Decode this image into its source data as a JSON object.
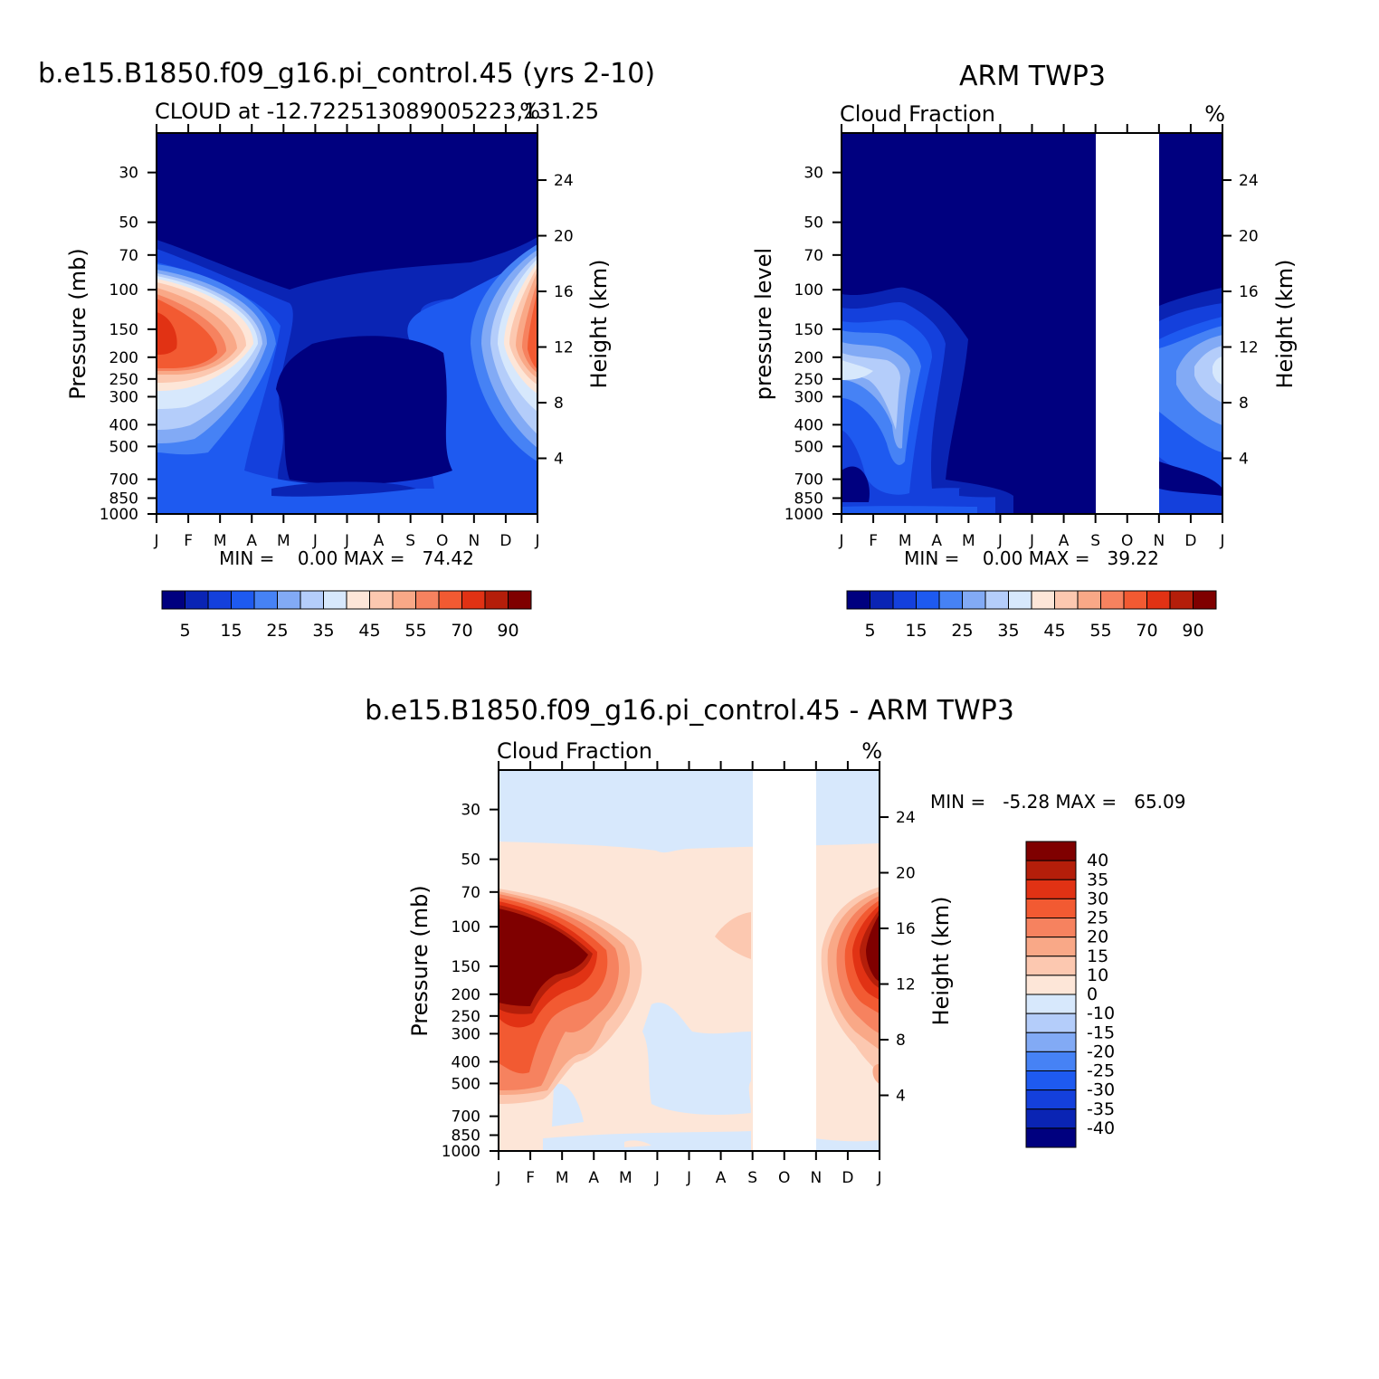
{
  "chart_data": [
    {
      "type": "heatmap",
      "title": "b.e15.B1850.f09_g16.pi_control.45 (yrs 2-10)",
      "subtitle_left": "CLOUD at -12.722513089005223,131.25",
      "subtitle_right": "%",
      "ylabel": "Pressure (mb)",
      "ylabel_right": "Height (km)",
      "x": [
        "J",
        "F",
        "M",
        "A",
        "M",
        "J",
        "J",
        "A",
        "S",
        "O",
        "N",
        "D",
        "J"
      ],
      "y_ticks": [
        "30",
        "50",
        "70",
        "100",
        "150",
        "200",
        "250",
        "300",
        "400",
        "500",
        "700",
        "850",
        "1000"
      ],
      "y_right_ticks": [
        "24",
        "20",
        "16",
        "12",
        "8",
        "4"
      ],
      "ylim": [
        1000,
        20
      ],
      "stats": "MIN =    0.00 MAX =   74.42",
      "colorbar": {
        "orientation": "horizontal",
        "labels": [
          "5",
          "15",
          "25",
          "35",
          "45",
          "55",
          "70",
          "90"
        ],
        "levels": [
          5,
          10,
          15,
          20,
          25,
          30,
          35,
          40,
          45,
          50,
          55,
          60,
          70,
          80,
          90
        ]
      },
      "features": [
        {
          "desc": "upper-level max, Jan",
          "x": "J",
          "pressure": 180,
          "value": 70
        },
        {
          "desc": "upper-level max, Dec",
          "x": "D",
          "pressure": 180,
          "value": 55
        },
        {
          "desc": "dry core May-Oct",
          "x": "A",
          "pressure": 350,
          "value": 0
        }
      ]
    },
    {
      "type": "heatmap",
      "title": "ARM TWP3",
      "subtitle_left": "Cloud Fraction",
      "subtitle_right": "%",
      "ylabel": "pressure level",
      "ylabel_right": "Height (km)",
      "x": [
        "J",
        "F",
        "M",
        "A",
        "M",
        "J",
        "J",
        "A",
        "S",
        "O",
        "N",
        "D",
        "J"
      ],
      "y_ticks": [
        "30",
        "50",
        "70",
        "100",
        "150",
        "200",
        "250",
        "300",
        "400",
        "500",
        "700",
        "850",
        "1000"
      ],
      "y_right_ticks": [
        "24",
        "20",
        "16",
        "12",
        "8",
        "4"
      ],
      "missing": [
        "S",
        "N"
      ],
      "stats": "MIN =    0.00 MAX =   39.22",
      "colorbar": {
        "orientation": "horizontal",
        "labels": [
          "5",
          "15",
          "25",
          "35",
          "45",
          "55",
          "70",
          "90"
        ],
        "levels": [
          5,
          10,
          15,
          20,
          25,
          30,
          35,
          40,
          45,
          50,
          55,
          60,
          70,
          80,
          90
        ]
      },
      "features": [
        {
          "desc": "max, Jan",
          "x": "J",
          "pressure": 260,
          "value": 37
        },
        {
          "desc": "max, Mar",
          "x": "M",
          "pressure": 280,
          "value": 33
        },
        {
          "desc": "max, Dec",
          "x": "D",
          "pressure": 270,
          "value": 35
        }
      ]
    },
    {
      "type": "heatmap",
      "title": "b.e15.B1850.f09_g16.pi_control.45 - ARM TWP3",
      "subtitle_left": "Cloud Fraction",
      "subtitle_right": "%",
      "ylabel": "Pressure (mb)",
      "ylabel_right": "Height (km)",
      "x": [
        "J",
        "F",
        "M",
        "A",
        "M",
        "J",
        "J",
        "A",
        "S",
        "O",
        "N",
        "D",
        "J"
      ],
      "y_ticks": [
        "30",
        "50",
        "70",
        "100",
        "150",
        "200",
        "250",
        "300",
        "400",
        "500",
        "700",
        "850",
        "1000"
      ],
      "y_right_ticks": [
        "24",
        "20",
        "16",
        "12",
        "8",
        "4"
      ],
      "missing": [
        "S",
        "N"
      ],
      "stats": "MIN =   -5.28 MAX =   65.09",
      "colorbar": {
        "orientation": "vertical",
        "labels": [
          "40",
          "35",
          "30",
          "25",
          "20",
          "15",
          "10",
          "0",
          "-10",
          "-15",
          "-20",
          "-25",
          "-30",
          "-35",
          "-40"
        ],
        "levels": [
          40,
          35,
          30,
          25,
          20,
          15,
          10,
          0,
          -10,
          -15,
          -20,
          -25,
          -30,
          -35,
          -40
        ]
      },
      "features": [
        {
          "desc": "max, Jan-Mar",
          "x": "F",
          "pressure": 160,
          "value": 60
        },
        {
          "desc": "max, Dec-Jan",
          "x": "J",
          "pressure": 140,
          "value": 45
        }
      ]
    }
  ],
  "colors": {
    "bar_seq": [
      "#00007f",
      "#0a24b4",
      "#1440dc",
      "#1e5af0",
      "#4682f5",
      "#82aaf5",
      "#b4cdfa",
      "#d7e8fc",
      "#fde6d8",
      "#fcc8b0",
      "#f9a887",
      "#f6825f",
      "#f25a32",
      "#e13214",
      "#b41e0a",
      "#7f0000"
    ],
    "bar_div": [
      "#7f0000",
      "#b41e0a",
      "#e13214",
      "#f25a32",
      "#f6825f",
      "#f9a887",
      "#fcc8b0",
      "#fde6d8",
      "#d7e8fc",
      "#b4cdfa",
      "#82aaf5",
      "#4682f5",
      "#1e5af0",
      "#1440dc",
      "#0a24b4",
      "#00007f"
    ]
  }
}
